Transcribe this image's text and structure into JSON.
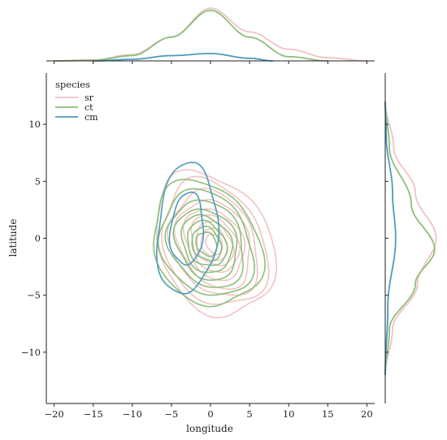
{
  "chart_data": {
    "type": "kde-joint",
    "xlabel": "longitude",
    "ylabel": "latitude",
    "xlim": [
      -21,
      21
    ],
    "ylim": [
      -14.5,
      14.5
    ],
    "xticks": [
      "−20",
      "−15",
      "−10",
      "−5",
      "0",
      "5",
      "10",
      "15",
      "20"
    ],
    "xtick_values": [
      -20,
      -15,
      -10,
      -5,
      0,
      5,
      10,
      15,
      20
    ],
    "yticks": [
      "10",
      "5",
      "0",
      "−5",
      "−10"
    ],
    "ytick_values": [
      10,
      5,
      0,
      -5,
      -10
    ],
    "legend": {
      "title": "species",
      "placement": "top-left",
      "entries": [
        "sr",
        "ct",
        "cm"
      ]
    },
    "grid": false,
    "series": [
      {
        "name": "sr",
        "color": "#f0c3c4",
        "center": [
          0.5,
          -0.5
        ],
        "sx": 8.0,
        "sy": 5.8,
        "tilt": -0.45,
        "levels": [
          1.0,
          0.88,
          0.74,
          0.62,
          0.5,
          0.4,
          0.31,
          0.22,
          0.14
        ],
        "x_density": [
          [
            -20,
            0.0
          ],
          [
            -15,
            0.02
          ],
          [
            -10,
            0.12
          ],
          [
            -5,
            0.45
          ],
          [
            0,
            1.0
          ],
          [
            5,
            0.55
          ],
          [
            10,
            0.22
          ],
          [
            15,
            0.06
          ],
          [
            20,
            0.0
          ]
        ],
        "y_density": [
          [
            -12,
            0.0
          ],
          [
            -8,
            0.14
          ],
          [
            -4,
            0.62
          ],
          [
            0,
            0.98
          ],
          [
            4,
            0.58
          ],
          [
            8,
            0.16
          ],
          [
            12,
            0.0
          ]
        ]
      },
      {
        "name": "ct",
        "color": "#8cbf78",
        "center": [
          -0.5,
          -0.5
        ],
        "sx": 7.2,
        "sy": 5.2,
        "tilt": -0.35,
        "levels": [
          1.0,
          0.85,
          0.7,
          0.57,
          0.46,
          0.36,
          0.27,
          0.19
        ],
        "x_density": [
          [
            -20,
            0.0
          ],
          [
            -15,
            0.01
          ],
          [
            -10,
            0.1
          ],
          [
            -5,
            0.45
          ],
          [
            0,
            0.96
          ],
          [
            5,
            0.45
          ],
          [
            10,
            0.08
          ],
          [
            15,
            0.0
          ]
        ],
        "y_density": [
          [
            -12,
            0.0
          ],
          [
            -8,
            0.08
          ],
          [
            -4,
            0.58
          ],
          [
            -1,
            0.95
          ],
          [
            3,
            0.5
          ],
          [
            8,
            0.08
          ],
          [
            12,
            0.0
          ]
        ]
      },
      {
        "name": "cm",
        "color": "#4b9bbd",
        "center": [
          -3.0,
          0.8
        ],
        "sx": 3.8,
        "sy": 5.8,
        "tilt": -0.15,
        "levels": [
          1.0,
          0.55
        ],
        "x_density": [
          [
            -15,
            0.0
          ],
          [
            -10,
            0.03
          ],
          [
            -5,
            0.1
          ],
          [
            0,
            0.14
          ],
          [
            5,
            0.05
          ],
          [
            8,
            0.0
          ]
        ],
        "y_density": [
          [
            -12,
            0.0
          ],
          [
            -6,
            0.05
          ],
          [
            0,
            0.2
          ],
          [
            4,
            0.14
          ],
          [
            9,
            0.02
          ],
          [
            12,
            0.0
          ]
        ]
      }
    ]
  }
}
